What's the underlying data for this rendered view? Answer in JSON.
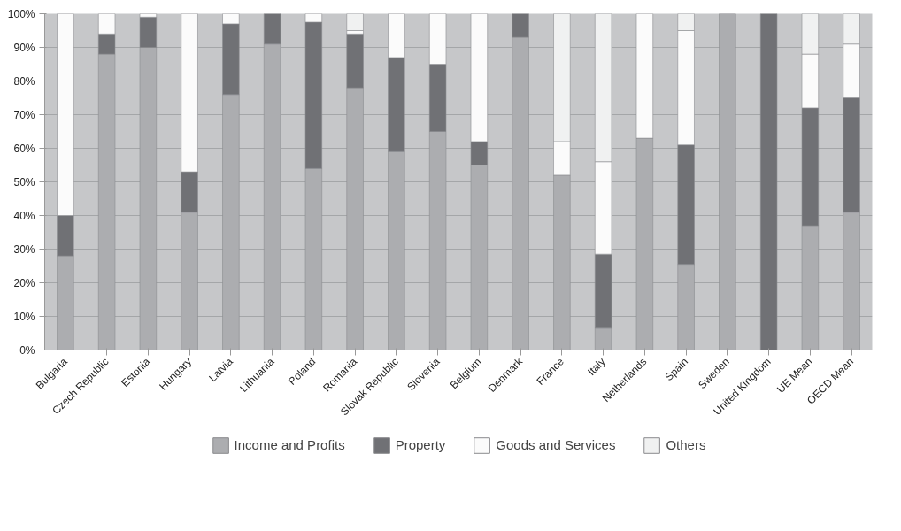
{
  "chart_data": {
    "type": "bar",
    "stacked": true,
    "categories": [
      "Bulgaria",
      "Czech Republic",
      "Estonia",
      "Hungary",
      "Latvia",
      "Lithuania",
      "Poland",
      "Romania",
      "Slovak Republic",
      "Slovenia",
      "Belgium",
      "Denmark",
      "France",
      "Italy",
      "Netherlands",
      "Spain",
      "Sweden",
      "United Kingdom",
      "UE Mean",
      "OECD Mean"
    ],
    "series": [
      {
        "name": "Income and Profits",
        "color": "#acadb0",
        "values": [
          28,
          88,
          90,
          41,
          76,
          91,
          54,
          78,
          59,
          65,
          55,
          93,
          52,
          6.5,
          63,
          25.5,
          100,
          0,
          37,
          41
        ]
      },
      {
        "name": "Property",
        "color": "#707175",
        "values": [
          12,
          6,
          9,
          12,
          21,
          9,
          43.5,
          16,
          28,
          20,
          7,
          7,
          0,
          22,
          0,
          35.5,
          0,
          100,
          35,
          34
        ]
      },
      {
        "name": "Goods and Services",
        "color": "#fbfbfb",
        "values": [
          60,
          6,
          1,
          47,
          3,
          0,
          2.5,
          1,
          13,
          15,
          38,
          0,
          10,
          27.5,
          37,
          34,
          0,
          0,
          16,
          16
        ]
      },
      {
        "name": "Others",
        "color": "#f0f1f1",
        "values": [
          0,
          0,
          0,
          0,
          0,
          0,
          0,
          5,
          0,
          0,
          0,
          0,
          38,
          44,
          0,
          5,
          0,
          0,
          12,
          9
        ]
      }
    ],
    "ylim": [
      0,
      100
    ],
    "yticks": [
      {
        "value": 0,
        "label": "0%"
      },
      {
        "value": 10,
        "label": "10%"
      },
      {
        "value": 20,
        "label": "20%"
      },
      {
        "value": 30,
        "label": "30%"
      },
      {
        "value": 40,
        "label": "40%"
      },
      {
        "value": 50,
        "label": "50%"
      },
      {
        "value": 60,
        "label": "60%"
      },
      {
        "value": 70,
        "label": "70%"
      },
      {
        "value": 80,
        "label": "80%"
      },
      {
        "value": 90,
        "label": "90%"
      },
      {
        "value": 100,
        "label": "100%"
      }
    ],
    "grid": "y",
    "legend": "bottom"
  }
}
